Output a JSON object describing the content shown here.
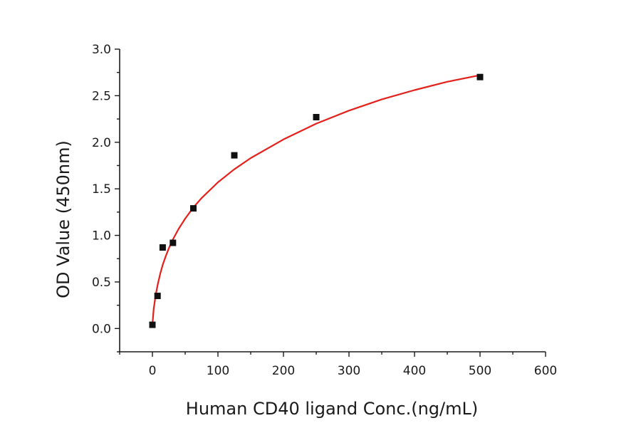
{
  "chart_data": {
    "type": "scatter",
    "xlabel": "Human CD40 ligand Conc.(ng/mL)",
    "ylabel": "OD Value (450nm)",
    "xlim": [
      -50,
      600
    ],
    "ylim": [
      -0.25,
      3.0
    ],
    "x_ticks": [
      0,
      100,
      200,
      300,
      400,
      500,
      600
    ],
    "x_tick_labels": [
      "0",
      "100",
      "200",
      "300",
      "400",
      "500",
      "600"
    ],
    "y_ticks": [
      0.0,
      0.5,
      1.0,
      1.5,
      2.0,
      2.5,
      3.0
    ],
    "y_tick_labels": [
      "0.0",
      "0.5",
      "1.0",
      "1.5",
      "2.0",
      "2.5",
      "3.0"
    ],
    "grid": false,
    "series": [
      {
        "type": "scatter",
        "color": "#111111",
        "marker": "square",
        "x": [
          0,
          7.8,
          15.6,
          31.25,
          62.5,
          125,
          250,
          500
        ],
        "y": [
          0.04,
          0.35,
          0.87,
          0.92,
          1.29,
          1.86,
          2.27,
          2.7
        ]
      },
      {
        "type": "line",
        "color": "#e3201b",
        "x": [
          0,
          2,
          5,
          8,
          12,
          16,
          20,
          25,
          30,
          40,
          50,
          62.5,
          75,
          100,
          125,
          150,
          200,
          250,
          300,
          350,
          400,
          450,
          500
        ],
        "y": [
          0.04,
          0.21,
          0.36,
          0.47,
          0.59,
          0.69,
          0.77,
          0.86,
          0.94,
          1.07,
          1.18,
          1.3,
          1.4,
          1.57,
          1.71,
          1.83,
          2.03,
          2.2,
          2.34,
          2.46,
          2.56,
          2.65,
          2.72
        ]
      }
    ]
  }
}
